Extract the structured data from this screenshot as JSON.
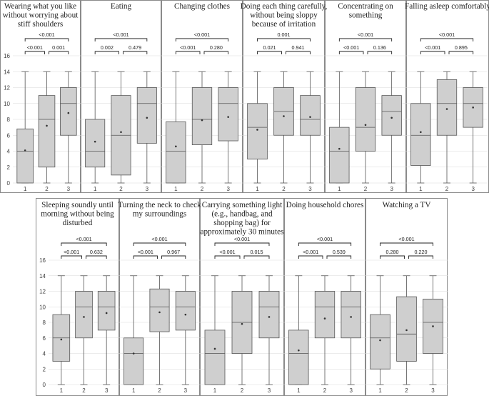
{
  "chart_data": [
    {
      "type": "box",
      "title": "Wearing what you like without worrying about stiff shoulders",
      "categories": [
        "1",
        "2",
        "3"
      ],
      "ylim": [
        0,
        16
      ],
      "yticks": [
        0,
        2,
        4,
        6,
        8,
        10,
        12,
        14,
        16
      ],
      "boxes": [
        {
          "min": 0,
          "q1": 0,
          "median": 4,
          "q3": 6.8,
          "max": 14,
          "mean": 4.1
        },
        {
          "min": 0,
          "q1": 2,
          "median": 8,
          "q3": 11,
          "max": 14,
          "mean": 7.2
        },
        {
          "min": 0,
          "q1": 6,
          "median": 10,
          "q3": 12,
          "max": 14,
          "mean": 8.8
        }
      ],
      "comparisons": [
        {
          "groups": [
            1,
            3
          ],
          "p": "<0.001"
        },
        {
          "groups": [
            1,
            2
          ],
          "p": "<0.001"
        },
        {
          "groups": [
            2,
            3
          ],
          "p": "0.001"
        }
      ]
    },
    {
      "type": "box",
      "title": "Eating",
      "categories": [
        "1",
        "2",
        "3"
      ],
      "ylim": [
        0,
        16
      ],
      "yticks": [
        0,
        2,
        4,
        6,
        8,
        10,
        12,
        14,
        16
      ],
      "boxes": [
        {
          "min": 0,
          "q1": 2,
          "median": 4,
          "q3": 8,
          "max": 14,
          "mean": 5.2
        },
        {
          "min": 0,
          "q1": 1,
          "median": 6,
          "q3": 11,
          "max": 14,
          "mean": 6.4
        },
        {
          "min": 0,
          "q1": 5,
          "median": 10,
          "q3": 12,
          "max": 14,
          "mean": 8.2
        }
      ],
      "comparisons": [
        {
          "groups": [
            1,
            3
          ],
          "p": "<0.001"
        },
        {
          "groups": [
            1,
            2
          ],
          "p": "0.002"
        },
        {
          "groups": [
            2,
            3
          ],
          "p": "0.479"
        }
      ]
    },
    {
      "type": "box",
      "title": "Changing clothes",
      "categories": [
        "1",
        "2",
        "3"
      ],
      "ylim": [
        0,
        16
      ],
      "yticks": [
        0,
        2,
        4,
        6,
        8,
        10,
        12,
        14,
        16
      ],
      "boxes": [
        {
          "min": 0,
          "q1": 0,
          "median": 4,
          "q3": 7.7,
          "max": 14,
          "mean": 4.6
        },
        {
          "min": 0,
          "q1": 4.8,
          "median": 8,
          "q3": 12,
          "max": 14,
          "mean": 7.9
        },
        {
          "min": 0,
          "q1": 5.3,
          "median": 10,
          "q3": 12,
          "max": 14,
          "mean": 8.3
        }
      ],
      "comparisons": [
        {
          "groups": [
            1,
            3
          ],
          "p": "<0.001"
        },
        {
          "groups": [
            1,
            2
          ],
          "p": "<0.001"
        },
        {
          "groups": [
            2,
            3
          ],
          "p": "0.280"
        }
      ]
    },
    {
      "type": "box",
      "title": "Doing each thing carefully, without being sloppy because of irritation",
      "categories": [
        "1",
        "2",
        "3"
      ],
      "ylim": [
        0,
        16
      ],
      "yticks": [
        0,
        2,
        4,
        6,
        8,
        10,
        12,
        14,
        16
      ],
      "boxes": [
        {
          "min": 0,
          "q1": 3,
          "median": 7,
          "q3": 10,
          "max": 14,
          "mean": 6.7
        },
        {
          "min": 0,
          "q1": 6,
          "median": 9,
          "q3": 12,
          "max": 14,
          "mean": 8.4
        },
        {
          "min": 0,
          "q1": 6,
          "median": 8,
          "q3": 11,
          "max": 14,
          "mean": 8.3
        }
      ],
      "comparisons": [
        {
          "groups": [
            1,
            3
          ],
          "p": "0.001"
        },
        {
          "groups": [
            1,
            2
          ],
          "p": "0.021"
        },
        {
          "groups": [
            2,
            3
          ],
          "p": "0.941"
        }
      ]
    },
    {
      "type": "box",
      "title": "Concentrating on something",
      "categories": [
        "1",
        "2",
        "3"
      ],
      "ylim": [
        0,
        16
      ],
      "yticks": [
        0,
        2,
        4,
        6,
        8,
        10,
        12,
        14,
        16
      ],
      "boxes": [
        {
          "min": 0,
          "q1": 0,
          "median": 4,
          "q3": 7,
          "max": 14,
          "mean": 4.3
        },
        {
          "min": 0,
          "q1": 4,
          "median": 7,
          "q3": 12,
          "max": 14,
          "mean": 7.3
        },
        {
          "min": 0,
          "q1": 6,
          "median": 9,
          "q3": 11,
          "max": 14,
          "mean": 8.2
        }
      ],
      "comparisons": [
        {
          "groups": [
            1,
            3
          ],
          "p": "<0.001"
        },
        {
          "groups": [
            1,
            2
          ],
          "p": "<0.001"
        },
        {
          "groups": [
            2,
            3
          ],
          "p": "0.136"
        }
      ]
    },
    {
      "type": "box",
      "title": "Falling asleep comfortably",
      "categories": [
        "1",
        "2",
        "3"
      ],
      "ylim": [
        0,
        16
      ],
      "yticks": [
        0,
        2,
        4,
        6,
        8,
        10,
        12,
        14,
        16
      ],
      "boxes": [
        {
          "min": 0,
          "q1": 2.2,
          "median": 6,
          "q3": 10,
          "max": 14,
          "mean": 6.4
        },
        {
          "min": 0,
          "q1": 6,
          "median": 10,
          "q3": 13,
          "max": 14,
          "mean": 9.3
        },
        {
          "min": 0,
          "q1": 7,
          "median": 10,
          "q3": 12,
          "max": 14,
          "mean": 9.5
        }
      ],
      "comparisons": [
        {
          "groups": [
            1,
            3
          ],
          "p": "<0.001"
        },
        {
          "groups": [
            1,
            2
          ],
          "p": "<0.001"
        },
        {
          "groups": [
            2,
            3
          ],
          "p": "0.895"
        }
      ]
    },
    {
      "type": "box",
      "title": "Sleeping soundly until morning without being disturbed",
      "categories": [
        "1",
        "2",
        "3"
      ],
      "ylim": [
        0,
        16
      ],
      "yticks": [
        0,
        2,
        4,
        6,
        8,
        10,
        12,
        14,
        16
      ],
      "boxes": [
        {
          "min": 0,
          "q1": 3,
          "median": 6,
          "q3": 9,
          "max": 14,
          "mean": 5.8
        },
        {
          "min": 0,
          "q1": 6,
          "median": 10,
          "q3": 12,
          "max": 14,
          "mean": 8.7
        },
        {
          "min": 0,
          "q1": 7,
          "median": 10,
          "q3": 12,
          "max": 14,
          "mean": 9.2
        }
      ],
      "comparisons": [
        {
          "groups": [
            1,
            3
          ],
          "p": "<0.001"
        },
        {
          "groups": [
            1,
            2
          ],
          "p": "<0.001"
        },
        {
          "groups": [
            2,
            3
          ],
          "p": "0.632"
        }
      ]
    },
    {
      "type": "box",
      "title": "Turning the neck to check my surroundings",
      "categories": [
        "1",
        "2",
        "3"
      ],
      "ylim": [
        0,
        16
      ],
      "yticks": [
        0,
        2,
        4,
        6,
        8,
        10,
        12,
        14,
        16
      ],
      "boxes": [
        {
          "min": 0,
          "q1": 0,
          "median": 4,
          "q3": 6,
          "max": 14,
          "mean": 4.0
        },
        {
          "min": 0,
          "q1": 6.8,
          "median": 10,
          "q3": 12.3,
          "max": 14,
          "mean": 9.3
        },
        {
          "min": 0,
          "q1": 7,
          "median": 10,
          "q3": 12,
          "max": 14,
          "mean": 9.0
        }
      ],
      "comparisons": [
        {
          "groups": [
            1,
            3
          ],
          "p": "<0.001"
        },
        {
          "groups": [
            1,
            2
          ],
          "p": "<0.001"
        },
        {
          "groups": [
            2,
            3
          ],
          "p": "0.967"
        }
      ]
    },
    {
      "type": "box",
      "title": "Carrying something light (e.g., handbag, and shopping bag) for approximately 30 minutes",
      "categories": [
        "1",
        "2",
        "3"
      ],
      "ylim": [
        0,
        16
      ],
      "yticks": [
        0,
        2,
        4,
        6,
        8,
        10,
        12,
        14,
        16
      ],
      "boxes": [
        {
          "min": 0,
          "q1": 0,
          "median": 4,
          "q3": 7,
          "max": 14,
          "mean": 4.6
        },
        {
          "min": 0,
          "q1": 4,
          "median": 8,
          "q3": 12,
          "max": 14,
          "mean": 7.8
        },
        {
          "min": 0,
          "q1": 6,
          "median": 10,
          "q3": 12,
          "max": 14,
          "mean": 8.7
        }
      ],
      "comparisons": [
        {
          "groups": [
            1,
            3
          ],
          "p": "<0.001"
        },
        {
          "groups": [
            1,
            2
          ],
          "p": "<0.001"
        },
        {
          "groups": [
            2,
            3
          ],
          "p": "0.015"
        }
      ]
    },
    {
      "type": "box",
      "title": "Doing household chores",
      "categories": [
        "1",
        "2",
        "3"
      ],
      "ylim": [
        0,
        16
      ],
      "yticks": [
        0,
        2,
        4,
        6,
        8,
        10,
        12,
        14,
        16
      ],
      "boxes": [
        {
          "min": 0,
          "q1": 0,
          "median": 4,
          "q3": 7,
          "max": 14,
          "mean": 4.4
        },
        {
          "min": 0,
          "q1": 6,
          "median": 10,
          "q3": 12,
          "max": 14,
          "mean": 8.5
        },
        {
          "min": 0,
          "q1": 6,
          "median": 10,
          "q3": 12,
          "max": 14,
          "mean": 8.7
        }
      ],
      "comparisons": [
        {
          "groups": [
            1,
            3
          ],
          "p": "<0.001"
        },
        {
          "groups": [
            1,
            2
          ],
          "p": "<0.001"
        },
        {
          "groups": [
            2,
            3
          ],
          "p": "0.539"
        }
      ]
    },
    {
      "type": "box",
      "title": "Watching a TV",
      "categories": [
        "1",
        "2",
        "3"
      ],
      "ylim": [
        0,
        16
      ],
      "yticks": [
        0,
        2,
        4,
        6,
        8,
        10,
        12,
        14,
        16
      ],
      "boxes": [
        {
          "min": 0,
          "q1": 2,
          "median": 6,
          "q3": 9,
          "max": 14,
          "mean": 5.7
        },
        {
          "min": 0,
          "q1": 3,
          "median": 6.5,
          "q3": 11.3,
          "max": 14,
          "mean": 7.0
        },
        {
          "min": 0,
          "q1": 4,
          "median": 8,
          "q3": 11,
          "max": 14,
          "mean": 7.5
        }
      ],
      "comparisons": [
        {
          "groups": [
            1,
            3
          ],
          "p": "<0.001"
        },
        {
          "groups": [
            1,
            2
          ],
          "p": "0.280"
        },
        {
          "groups": [
            2,
            3
          ],
          "p": "0.220"
        }
      ]
    }
  ]
}
